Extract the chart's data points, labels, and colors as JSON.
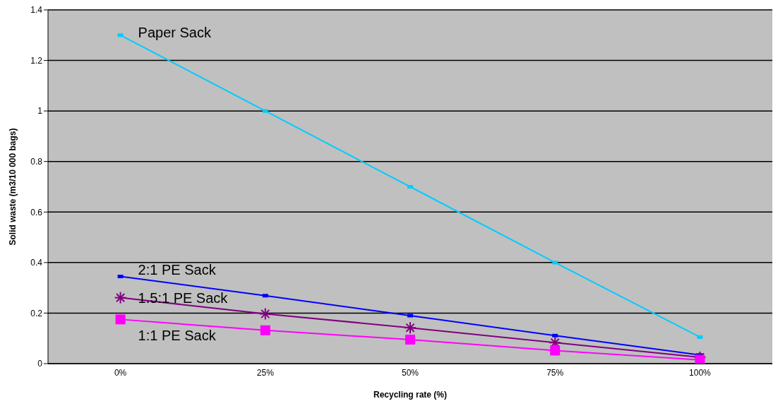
{
  "chart_data": {
    "type": "line",
    "xlabel": "Recycling rate (%)",
    "ylabel": "Solid waste (m3/10 000 bags)",
    "categories": [
      "0%",
      "25%",
      "50%",
      "75%",
      "100%"
    ],
    "series": [
      {
        "color": "#00ccff",
        "marker": "square",
        "values": [
          1.3,
          1.0,
          0.7,
          0.4,
          0.105
        ]
      },
      {
        "color": "#0000ff",
        "marker": "square",
        "values": [
          0.345,
          0.269,
          0.19,
          0.111,
          0.034
        ]
      },
      {
        "color": "#800080",
        "marker": "cross",
        "values": [
          0.261,
          0.197,
          0.142,
          0.083,
          0.025
        ]
      },
      {
        "color": "#ff00ff",
        "marker": "square",
        "values": [
          0.175,
          0.132,
          0.095,
          0.052,
          0.015
        ]
      }
    ],
    "annotations": [
      "Paper Sack",
      "2:1 PE Sack",
      "1.5:1 PE Sack",
      "1:1 PE Sack"
    ],
    "ylim": [
      0,
      1.4
    ],
    "yticks": [
      0,
      0.2,
      0.4,
      0.6,
      0.8,
      1,
      1.2,
      1.4
    ],
    "grid": "y",
    "legend": false
  }
}
